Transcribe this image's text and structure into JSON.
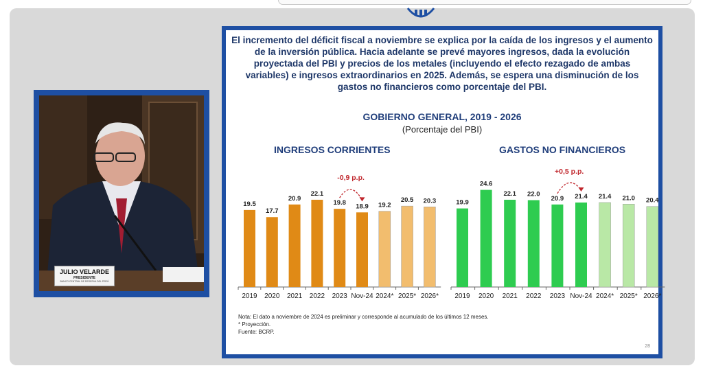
{
  "slide": {
    "headline": "El incremento del déficit fiscal a noviembre se explica por la caída de los ingresos y el aumento de la inversión pública. Hacia adelante se prevé mayores ingresos, dada la evolución proyectada del PBI y precios de los metales (incluyendo el efecto rezagado de ambas variables) e ingresos extraordinarios en 2025. Además, se espera una disminución de los gastos no financieros como porcentaje del PBI.",
    "chart_title": "GOBIERNO GENERAL, 2019 - 2026",
    "chart_subtitle": "(Porcentaje del PBI)",
    "note_1": "Nota: El dato a noviembre de 2024 es preliminar y corresponde al acumulado de los últimos 12 meses.",
    "note_2": "* Proyección.",
    "note_3": "Fuente: BCRP.",
    "page_number": "28"
  },
  "speaker": {
    "name": "JULIO VELARDE",
    "role": "PRESIDENTE",
    "org": "BANCO CENTRAL DE RESERVA DEL PERÚ"
  },
  "colors": {
    "ingresos_actual": "#e08a16",
    "ingresos_proj": "#f2bd6e",
    "gastos_actual": "#2ecc50",
    "gastos_proj": "#b9e8a6",
    "annotation": "#c0262c",
    "slide_border": "#1e4fa3"
  },
  "chart_data": [
    {
      "type": "bar",
      "title": "INGRESOS CORRIENTES",
      "categories": [
        "2019",
        "2020",
        "2021",
        "2022",
        "2023",
        "Nov-24",
        "2024*",
        "2025*",
        "2026*"
      ],
      "values": [
        19.5,
        17.7,
        20.9,
        22.1,
        19.8,
        18.9,
        19.2,
        20.5,
        20.3
      ],
      "projected": [
        false,
        false,
        false,
        false,
        false,
        false,
        true,
        true,
        true
      ],
      "annotation": {
        "text": "-0,9 p.p.",
        "from": "2023",
        "to": "Nov-24"
      }
    },
    {
      "type": "bar",
      "title": "GASTOS NO FINANCIEROS",
      "categories": [
        "2019",
        "2020",
        "2021",
        "2022",
        "2023",
        "Nov-24",
        "2024*",
        "2025*",
        "2026*"
      ],
      "values": [
        19.9,
        24.6,
        22.1,
        22.0,
        20.9,
        21.4,
        21.4,
        21.0,
        20.4
      ],
      "projected": [
        false,
        false,
        false,
        false,
        false,
        false,
        true,
        true,
        true
      ],
      "annotation": {
        "text": "+0,5 p.p.",
        "from": "2023",
        "to": "Nov-24"
      }
    }
  ]
}
